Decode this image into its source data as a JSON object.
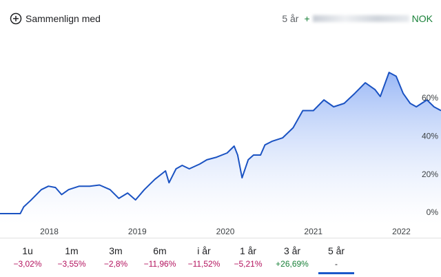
{
  "header": {
    "compare": "Sammenlign med",
    "period": "5 år",
    "sign": "+",
    "currency": "NOK"
  },
  "chart_data": {
    "type": "line",
    "series": [
      {
        "name": null,
        "color": "#1a52c2",
        "x": [
          2017.44,
          2017.67,
          2017.71,
          2017.79,
          2017.91,
          2017.99,
          2018.07,
          2018.14,
          2018.22,
          2018.34,
          2018.46,
          2018.57,
          2018.69,
          2018.79,
          2018.89,
          2018.98,
          2019.08,
          2019.2,
          2019.32,
          2019.36,
          2019.44,
          2019.51,
          2019.59,
          2019.71,
          2019.79,
          2019.9,
          2020.02,
          2020.1,
          2020.14,
          2020.19,
          2020.26,
          2020.32,
          2020.4,
          2020.45,
          2020.53,
          2020.65,
          2020.77,
          2020.88,
          2021.0,
          2021.12,
          2021.23,
          2021.35,
          2021.47,
          2021.59,
          2021.7,
          2021.76,
          2021.86,
          2021.94,
          2022.02,
          2022.1,
          2022.17,
          2022.29,
          2022.37,
          2022.45
        ],
        "values": [
          0,
          0,
          3.6,
          7,
          12.6,
          14.4,
          13.7,
          10,
          12.6,
          14.4,
          14.4,
          15,
          12.6,
          8,
          10.8,
          7.2,
          12.6,
          18,
          22.4,
          16.2,
          23.5,
          25.3,
          23.5,
          26,
          28.2,
          29.6,
          31.8,
          35.4,
          30.7,
          18.8,
          28.2,
          30.7,
          30.7,
          36,
          37.9,
          39.7,
          45,
          54,
          54,
          59.6,
          56,
          57.8,
          63,
          68.6,
          65,
          61.4,
          74,
          72,
          63,
          57.8,
          56,
          59.6,
          56,
          54
        ]
      }
    ],
    "xlim": [
      2017.44,
      2022.45
    ],
    "xticks": [
      2018,
      2019,
      2020,
      2021,
      2022
    ],
    "ylim": [
      -5.4,
      93.9
    ],
    "yticks": [
      {
        "value": 0,
        "label": "0%"
      },
      {
        "value": 20,
        "label": "20%"
      },
      {
        "value": 40,
        "label": "40%"
      },
      {
        "value": 60,
        "label": "60%"
      }
    ]
  },
  "tabs": [
    {
      "period": "1u",
      "change": "−3,02%"
    },
    {
      "period": "1m",
      "change": "−3,55%"
    },
    {
      "period": "3m",
      "change": "−2,8%"
    },
    {
      "period": "6m",
      "change": "−11,96%"
    },
    {
      "period": "i år",
      "change": "−11,52%"
    },
    {
      "period": "1 år",
      "change": "−5,21%"
    },
    {
      "period": "3 år",
      "change": "+26,69%"
    },
    {
      "period": "5 år",
      "change": "-"
    }
  ]
}
